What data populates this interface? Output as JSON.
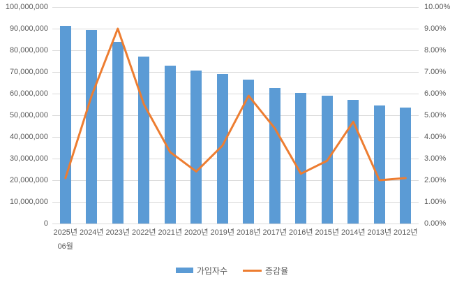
{
  "chart_data": {
    "type": "combo-bar-line",
    "title": "",
    "categories": [
      [
        "2025년",
        "06월"
      ],
      [
        "2024년"
      ],
      [
        "2023년"
      ],
      [
        "2022년"
      ],
      [
        "2021년"
      ],
      [
        "2020년"
      ],
      [
        "2019년"
      ],
      [
        "2018년"
      ],
      [
        "2017년"
      ],
      [
        "2016년"
      ],
      [
        "2015년"
      ],
      [
        "2014년"
      ],
      [
        "2013년"
      ],
      [
        "2012년"
      ]
    ],
    "series": [
      {
        "name": "가입자수",
        "type": "bar",
        "axis": "left",
        "color": "#5B9BD5",
        "values": [
          91300000,
          89200000,
          83800000,
          77000000,
          72800000,
          70500000,
          68900000,
          66300000,
          62700000,
          60400000,
          59000000,
          57000000,
          54600000,
          53600000
        ]
      },
      {
        "name": "증감율",
        "type": "line",
        "axis": "right",
        "color": "#ED7D31",
        "values": [
          2.1,
          5.9,
          9.0,
          5.5,
          3.3,
          2.4,
          3.6,
          5.9,
          4.4,
          2.3,
          2.9,
          4.7,
          2.0,
          2.1
        ]
      }
    ],
    "y_left": {
      "min": 0,
      "max": 100000000,
      "step": 10000000,
      "ticks": [
        "0",
        "10,000,000",
        "20,000,000",
        "30,000,000",
        "40,000,000",
        "50,000,000",
        "60,000,000",
        "70,000,000",
        "80,000,000",
        "90,000,000",
        "100,000,000"
      ]
    },
    "y_right": {
      "min": 0,
      "max": 10,
      "step": 1,
      "ticks": [
        "0.00%",
        "1.00%",
        "2.00%",
        "3.00%",
        "4.00%",
        "5.00%",
        "6.00%",
        "7.00%",
        "8.00%",
        "9.00%",
        "10.00%"
      ]
    },
    "grid": true,
    "legend_position": "bottom",
    "colors": {
      "grid": "#D9D9D9",
      "axis_text": "#595959",
      "background": "#FFFFFF"
    }
  }
}
